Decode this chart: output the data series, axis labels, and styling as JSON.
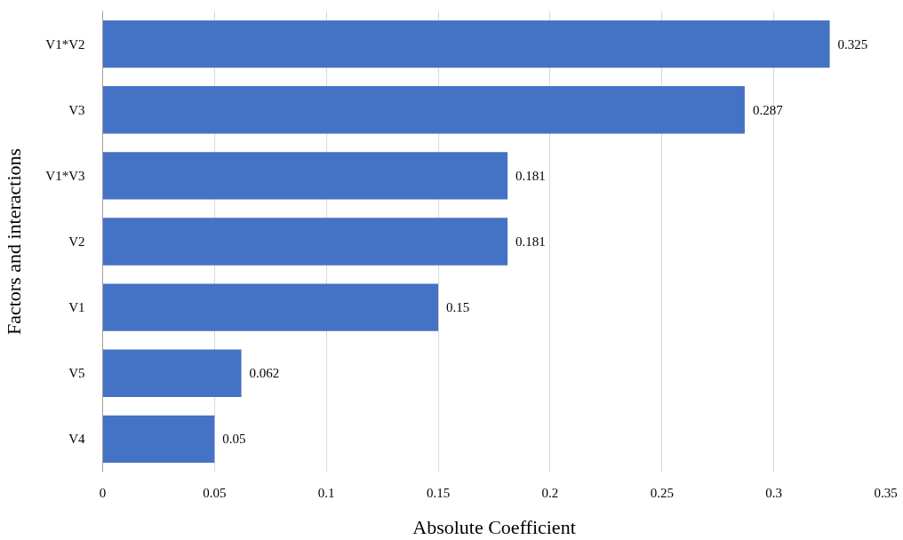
{
  "chart_data": {
    "type": "bar",
    "orientation": "horizontal",
    "xlabel": "Absolute Coefficient",
    "ylabel": "Factors and interactions",
    "categories": [
      "V1*V2",
      "V3",
      "V1*V3",
      "V2",
      "V1",
      "V5",
      "V4"
    ],
    "values": [
      0.325,
      0.287,
      0.181,
      0.181,
      0.15,
      0.062,
      0.05
    ],
    "color": "#4472c4",
    "xlim": [
      0,
      0.35
    ],
    "xticks": [
      0,
      0.05,
      0.1,
      0.15,
      0.2,
      0.25,
      0.3,
      0.35
    ],
    "grid": "x",
    "data_labels": true
  }
}
